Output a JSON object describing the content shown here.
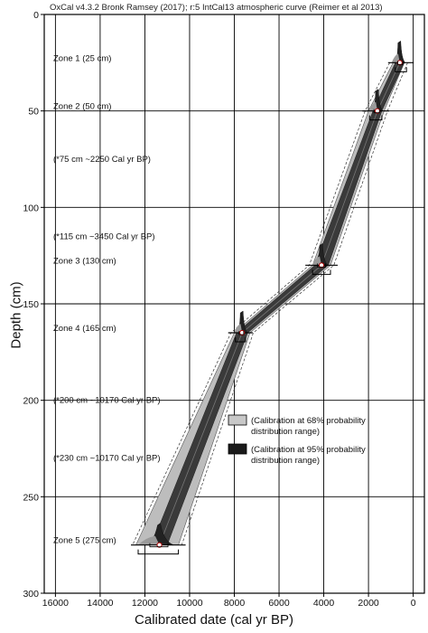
{
  "chart_data": {
    "type": "line",
    "title": "OxCal v4.3.2 Bronk Ramsey (2017); r:5 IntCal13 atmospheric curve (Reimer et al 2013)",
    "xlabel": "Calibrated date (cal yr BP)",
    "ylabel": "Depth (cm)",
    "xlim": [
      16500,
      -500
    ],
    "ylim": [
      0,
      300
    ],
    "x_reversed": true,
    "y_reversed": true,
    "grid": true,
    "xticks": [
      16000,
      14000,
      12000,
      10000,
      8000,
      6000,
      4000,
      2000,
      0
    ],
    "xtick_labels": [
      "16000",
      "14000",
      "12000",
      "10000",
      "8000",
      "6000",
      "4000",
      "2000",
      "0"
    ],
    "yticks": [
      0,
      50,
      100,
      150,
      200,
      250,
      300
    ],
    "ytick_labels": [
      "0",
      "50",
      "100",
      "150",
      "200",
      "250",
      "300"
    ],
    "series": [
      {
        "name": "Calibration at 68% probability distribution range",
        "color": "#c8c8c8",
        "depth": [
          25,
          50,
          130,
          165,
          275
        ],
        "min_age": [
          500,
          1500,
          3900,
          7500,
          11100
        ],
        "max_age": [
          700,
          1700,
          4300,
          7800,
          11600
        ]
      },
      {
        "name": "Calibration at 95% probability distribution range",
        "color": "#1a1a1a",
        "depth": [
          25,
          50,
          130,
          165,
          275
        ],
        "min_age": [
          400,
          1300,
          3700,
          7300,
          10500
        ],
        "max_age": [
          900,
          2000,
          4500,
          8000,
          12400
        ]
      }
    ],
    "age_model_median": {
      "depth": [
        25,
        50,
        130,
        165,
        275
      ],
      "age": [
        600,
        1600,
        4100,
        7650,
        11350
      ]
    },
    "dated_samples": [
      {
        "depth": 25,
        "age": 600,
        "range": [
          300,
          800
        ]
      },
      {
        "depth": 50,
        "age": 1600,
        "range": [
          1400,
          1950
        ]
      },
      {
        "depth": 130,
        "age": 4100,
        "range": [
          3700,
          4500
        ]
      },
      {
        "depth": 165,
        "age": 7650,
        "range": [
          7500,
          7950
        ]
      },
      {
        "depth": 275,
        "age": 11350,
        "range": [
          10500,
          12300
        ]
      }
    ],
    "annotations": [
      {
        "text": "Zone 1 (25 cm)",
        "depth": 25
      },
      {
        "text": "Zone 2 (50 cm)",
        "depth": 50
      },
      {
        "text": "(*75 cm ~2250 Cal yr BP)",
        "depth": 75
      },
      {
        "text": "(*115 cm ~3450 Cal yr BP)",
        "depth": 115
      },
      {
        "text": "Zone 3 (130 cm)",
        "depth": 130
      },
      {
        "text": "Zone 4 (165 cm)",
        "depth": 165
      },
      {
        "text": "(*200 cm ~10170 Cal yr BP)",
        "depth": 200
      },
      {
        "text": "(*230 cm ~10170 Cal yr BP)",
        "depth": 230
      },
      {
        "text": "Zone 5 (275 cm)",
        "depth": 275
      }
    ],
    "legend": {
      "placement": "right",
      "entries": [
        {
          "label_lines": [
            "(Calibration at 68% probability",
            "distribution range)"
          ],
          "color": "#c8c8c8"
        },
        {
          "label_lines": [
            "(Calibration at 95% probability",
            "distribution range)"
          ],
          "color": "#1a1a1a"
        }
      ]
    }
  }
}
